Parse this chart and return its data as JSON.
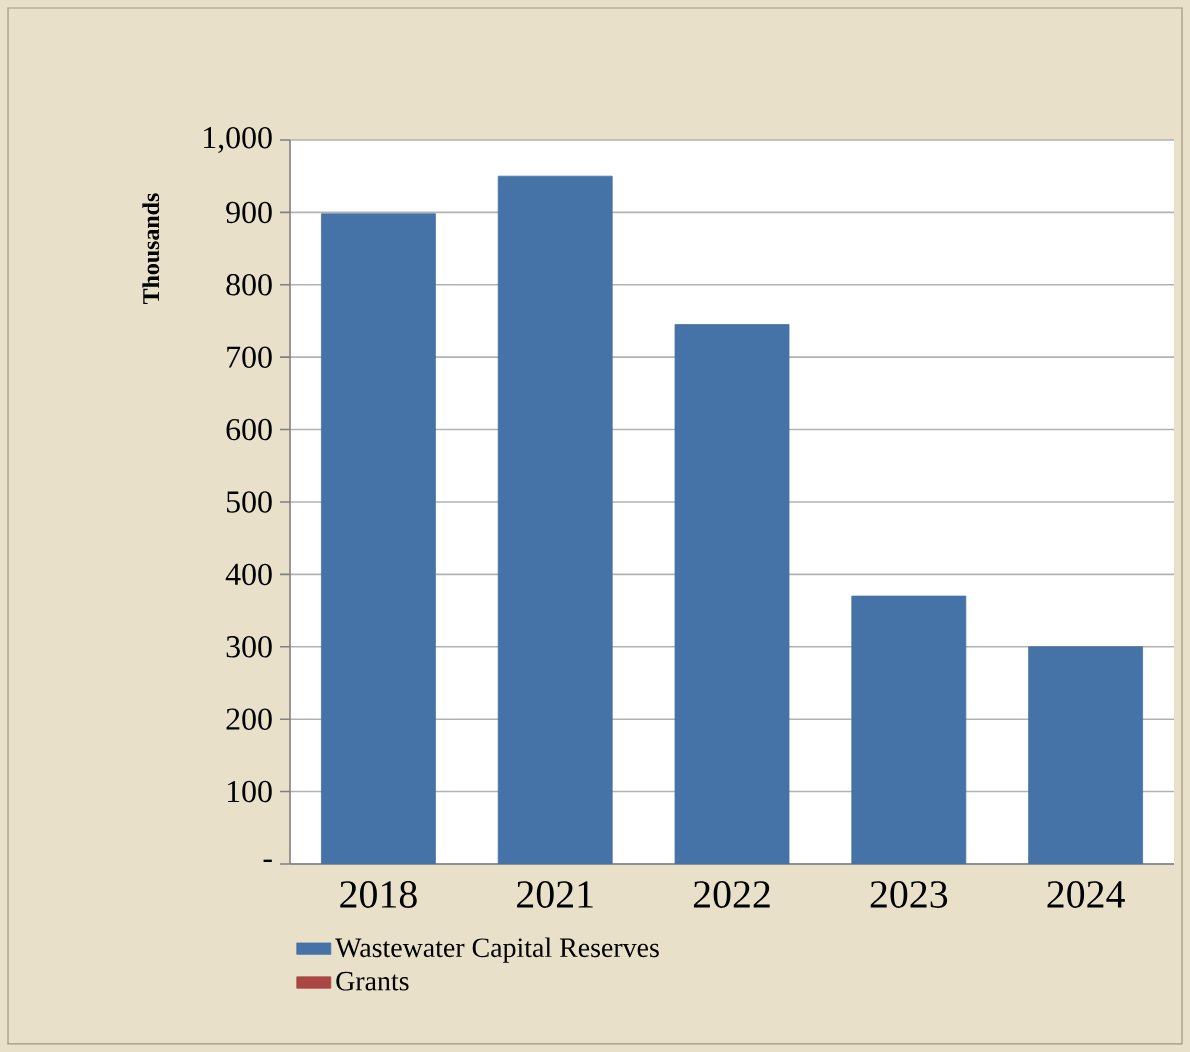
{
  "chart_data": {
    "type": "bar",
    "ylabel": "Thousands",
    "categories": [
      "2018",
      "2021",
      "2022",
      "2023",
      "2024"
    ],
    "series": [
      {
        "name": "Wastewater Capital Reserves",
        "color": "#4572a7",
        "values": [
          898,
          950,
          745,
          370,
          300
        ]
      },
      {
        "name": "Grants",
        "color": "#aa4643",
        "values": [
          0,
          0,
          0,
          0,
          0
        ]
      }
    ],
    "stacked": true,
    "ylim": [
      0,
      1000
    ],
    "yticks": [
      {
        "value": 0,
        "label": "-"
      },
      100,
      200,
      300,
      400,
      500,
      600,
      700,
      800,
      900,
      {
        "value": 1000,
        "label": "1,000"
      }
    ],
    "grid": "y",
    "legend": "bottom"
  }
}
